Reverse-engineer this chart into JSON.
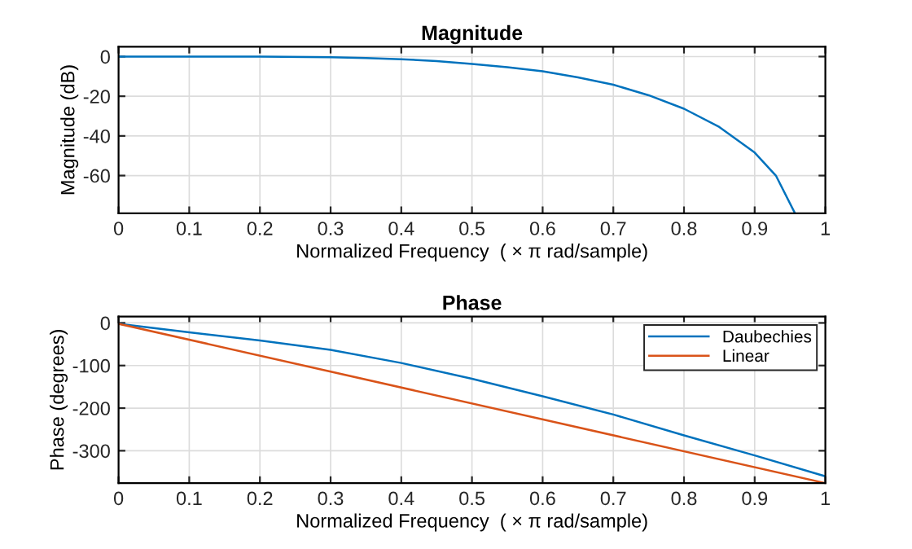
{
  "chart_data": [
    {
      "type": "line",
      "title": "Magnitude",
      "xlabel": "Normalized Frequency  ( × π rad/sample)",
      "ylabel": "Magnitude (dB)",
      "xlim": [
        0,
        1
      ],
      "xticks": [
        0,
        0.1,
        0.2,
        0.3,
        0.4,
        0.5,
        0.6,
        0.7,
        0.8,
        0.9,
        1
      ],
      "ylim": [
        -79,
        5
      ],
      "yticks": [
        -60,
        -40,
        -20,
        0
      ],
      "grid": true,
      "series": [
        {
          "color": "#0072bd",
          "x": [
            0,
            0.1,
            0.2,
            0.3,
            0.35,
            0.4,
            0.45,
            0.5,
            0.55,
            0.6,
            0.65,
            0.7,
            0.75,
            0.8,
            0.85,
            0.9,
            0.93,
            0.957
          ],
          "values": [
            0,
            0,
            0,
            -0.3,
            -0.7,
            -1.3,
            -2.3,
            -3.7,
            -5.4,
            -7.4,
            -10.5,
            -14.2,
            -19.5,
            -26.3,
            -35.5,
            -48.4,
            -60,
            -79
          ]
        }
      ]
    },
    {
      "type": "line",
      "title": "Phase",
      "xlabel": "Normalized Frequency  ( × π rad/sample)",
      "ylabel": "Phase (degrees)",
      "xlim": [
        0,
        1
      ],
      "xticks": [
        0,
        0.1,
        0.2,
        0.3,
        0.4,
        0.5,
        0.6,
        0.7,
        0.8,
        0.9,
        1
      ],
      "ylim": [
        -376,
        15
      ],
      "yticks": [
        -300,
        -200,
        -100,
        0
      ],
      "grid": true,
      "legend": "top right",
      "series": [
        {
          "name": "Daubechies",
          "color": "#0072bd",
          "x": [
            0,
            0.1,
            0.2,
            0.3,
            0.4,
            0.5,
            0.6,
            0.7,
            0.8,
            0.9,
            1
          ],
          "values": [
            -2,
            -22,
            -41,
            -63,
            -94,
            -131,
            -172,
            -215,
            -264,
            -311,
            -360
          ]
        },
        {
          "name": "Linear",
          "color": "#d95319",
          "x": [
            0,
            1
          ],
          "values": [
            -2,
            -376
          ]
        }
      ]
    }
  ]
}
